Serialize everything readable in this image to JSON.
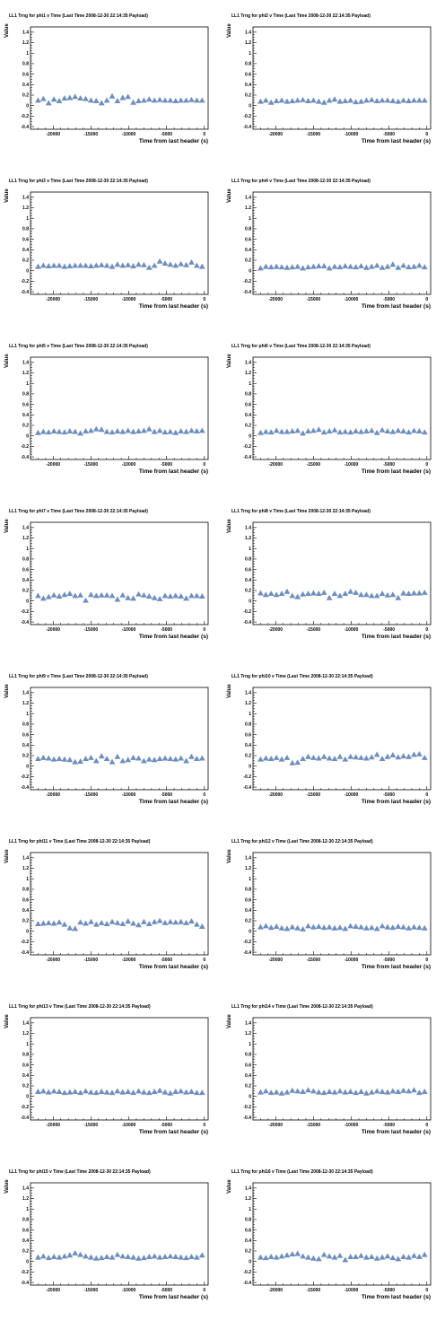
{
  "page": {
    "background": "#ffffff",
    "marker_color": "#6f8fc0"
  },
  "charts": [
    {
      "title": "LL1 Trng for phi1 v Time (Last Time 2008-12-30 22:14:35 Payload)",
      "xlabel": "Time from last header (s)",
      "ylabel": "Value"
    },
    {
      "title": "LL1 Trng for phi2 v Time (Last Time 2008-12-30 22:14:35 Payload)",
      "xlabel": "Time from last header (s)",
      "ylabel": "Value"
    },
    {
      "title": "LL1 Trng for phi3 v Time (Last Time 2008-12-30 22:14:35 Payload)",
      "xlabel": "Time from last header (s)",
      "ylabel": "Value"
    },
    {
      "title": "LL1 Trng for phi4 v Time (Last Time 2008-12-30 22:14:35 Payload)",
      "xlabel": "Time from last header (s)",
      "ylabel": "Value"
    },
    {
      "title": "LL1 Trng for phi5 v Time (Last Time 2008-12-30 22:14:35 Payload)",
      "xlabel": "Time from last header (s)",
      "ylabel": "Value"
    },
    {
      "title": "LL1 Trng for phi6 v Time (Last Time 2008-12-30 22:14:35 Payload)",
      "xlabel": "Time from last header (s)",
      "ylabel": "Value"
    },
    {
      "title": "LL1 Trng for phi7 v Time (Last Time 2008-12-30 22:14:35 Payload)",
      "xlabel": "Time from last header (s)",
      "ylabel": "Value"
    },
    {
      "title": "LL1 Trng for phi8 v Time (Last Time 2008-12-30 22:14:35 Payload)",
      "xlabel": "Time from last header (s)",
      "ylabel": "Value"
    },
    {
      "title": "LL1 Trng for phi9 v Time (Last Time 2008-12-30 22:14:35 Payload)",
      "xlabel": "Time from last header (s)",
      "ylabel": "Value"
    },
    {
      "title": "LL1 Trng for phi10 v Time (Last Time 2008-12-30 22:14:35 Payload)",
      "xlabel": "Time from last header (s)",
      "ylabel": "Value"
    },
    {
      "title": "LL1 Trng for phi11 v Time (Last Time 2008-12-30 22:14:35 Payload)",
      "xlabel": "Time from last header (s)",
      "ylabel": "Value"
    },
    {
      "title": "LL1 Trng for phi12 v Time (Last Time 2008-12-30 22:14:35 Payload)",
      "xlabel": "Time from last header (s)",
      "ylabel": "Value"
    },
    {
      "title": "LL1 Trng for phi13 v Time (Last Time 2008-12-30 22:14:35 Payload)",
      "xlabel": "Time from last header (s)",
      "ylabel": "Value"
    },
    {
      "title": "LL1 Trng for phi14 v Time (Last Time 2008-12-30 22:14:35 Payload)",
      "xlabel": "Time from last header (s)",
      "ylabel": "Value"
    },
    {
      "title": "LL1 Trng for phi15 v Time (Last Time 2008-12-30 22:14:35 Payload)",
      "xlabel": "Time from last header (s)",
      "ylabel": "Value"
    },
    {
      "title": "LL1 Trng for phi16 v Time (Last Time 2008-12-30 22:14:35 Payload)",
      "xlabel": "Time from last header (s)",
      "ylabel": "Value"
    }
  ],
  "chart_data": {
    "type": "scatter",
    "marker": "triangle",
    "xlim": [
      -23000,
      500
    ],
    "ylim": [
      -0.45,
      1.5
    ],
    "x_ticks": [
      -20000,
      -15000,
      -10000,
      -5000,
      0
    ],
    "x_tick_labels": [
      "-20000",
      "-15000",
      "-10000",
      "-5000",
      "0"
    ],
    "y_ticks": [
      -0.4,
      -0.2,
      0,
      0.2,
      0.4,
      0.6,
      0.8,
      1,
      1.2,
      1.4
    ],
    "y_tick_labels": [
      "-0.4",
      "-0.2",
      "0",
      "0.2",
      "0.4",
      "0.6",
      "0.8",
      "1",
      "1.2",
      "1.4"
    ],
    "x": [
      -22000,
      -21300,
      -20600,
      -19900,
      -19200,
      -18500,
      -17800,
      -17100,
      -16400,
      -15700,
      -15000,
      -14300,
      -13600,
      -12900,
      -12200,
      -11500,
      -10800,
      -10100,
      -9400,
      -8700,
      -8000,
      -7300,
      -6600,
      -5900,
      -5200,
      -4500,
      -3800,
      -3100,
      -2400,
      -1700,
      -1000,
      -300
    ],
    "series": [
      {
        "values": [
          0.1,
          0.13,
          0.05,
          0.12,
          0.09,
          0.14,
          0.15,
          0.17,
          0.14,
          0.13,
          0.1,
          0.09,
          0.05,
          0.1,
          0.18,
          0.09,
          0.15,
          0.17,
          0.06,
          0.09,
          0.1,
          0.12,
          0.1,
          0.11,
          0.1,
          0.1,
          0.09,
          0.1,
          0.1,
          0.11,
          0.1,
          0.1
        ]
      },
      {
        "values": [
          0.08,
          0.1,
          0.06,
          0.09,
          0.1,
          0.08,
          0.09,
          0.1,
          0.11,
          0.09,
          0.1,
          0.08,
          0.06,
          0.1,
          0.12,
          0.08,
          0.09,
          0.1,
          0.07,
          0.08,
          0.1,
          0.11,
          0.09,
          0.1,
          0.1,
          0.09,
          0.08,
          0.1,
          0.09,
          0.1,
          0.1,
          0.1
        ]
      },
      {
        "values": [
          0.08,
          0.1,
          0.09,
          0.1,
          0.1,
          0.08,
          0.09,
          0.1,
          0.1,
          0.1,
          0.09,
          0.1,
          0.11,
          0.1,
          0.08,
          0.12,
          0.1,
          0.11,
          0.09,
          0.12,
          0.11,
          0.06,
          0.1,
          0.18,
          0.14,
          0.12,
          0.1,
          0.13,
          0.11,
          0.16,
          0.1,
          0.08
        ]
      },
      {
        "values": [
          0.05,
          0.08,
          0.07,
          0.08,
          0.07,
          0.06,
          0.07,
          0.08,
          0.05,
          0.07,
          0.08,
          0.09,
          0.09,
          0.05,
          0.08,
          0.07,
          0.09,
          0.08,
          0.07,
          0.09,
          0.06,
          0.08,
          0.1,
          0.06,
          0.08,
          0.12,
          0.06,
          0.1,
          0.07,
          0.08,
          0.1,
          0.07
        ]
      },
      {
        "values": [
          0.06,
          0.08,
          0.07,
          0.09,
          0.08,
          0.07,
          0.09,
          0.08,
          0.05,
          0.09,
          0.1,
          0.13,
          0.12,
          0.08,
          0.07,
          0.09,
          0.08,
          0.1,
          0.08,
          0.09,
          0.1,
          0.13,
          0.08,
          0.1,
          0.07,
          0.08,
          0.06,
          0.09,
          0.08,
          0.1,
          0.09,
          0.1
        ]
      },
      {
        "values": [
          0.06,
          0.08,
          0.07,
          0.1,
          0.08,
          0.08,
          0.09,
          0.1,
          0.05,
          0.09,
          0.1,
          0.12,
          0.07,
          0.09,
          0.11,
          0.07,
          0.08,
          0.07,
          0.09,
          0.08,
          0.09,
          0.1,
          0.06,
          0.11,
          0.09,
          0.08,
          0.1,
          0.09,
          0.07,
          0.1,
          0.09,
          0.07
        ]
      },
      {
        "values": [
          0.1,
          0.05,
          0.08,
          0.11,
          0.09,
          0.12,
          0.14,
          0.1,
          0.11,
          0.01,
          0.12,
          0.1,
          0.11,
          0.11,
          0.1,
          0.03,
          0.11,
          0.06,
          0.05,
          0.13,
          0.11,
          0.09,
          0.06,
          0.04,
          0.1,
          0.09,
          0.1,
          0.09,
          0.05,
          0.1,
          0.1,
          0.09
        ]
      },
      {
        "values": [
          0.15,
          0.12,
          0.14,
          0.12,
          0.14,
          0.18,
          0.1,
          0.08,
          0.13,
          0.14,
          0.15,
          0.14,
          0.16,
          0.06,
          0.14,
          0.1,
          0.14,
          0.18,
          0.16,
          0.12,
          0.12,
          0.1,
          0.1,
          0.14,
          0.11,
          0.12,
          0.06,
          0.15,
          0.14,
          0.15,
          0.15,
          0.16
        ]
      },
      {
        "values": [
          0.14,
          0.16,
          0.15,
          0.13,
          0.14,
          0.13,
          0.12,
          0.08,
          0.09,
          0.14,
          0.16,
          0.1,
          0.19,
          0.14,
          0.08,
          0.18,
          0.1,
          0.12,
          0.16,
          0.15,
          0.1,
          0.13,
          0.12,
          0.14,
          0.15,
          0.14,
          0.13,
          0.15,
          0.1,
          0.18,
          0.14,
          0.15
        ]
      },
      {
        "values": [
          0.13,
          0.15,
          0.14,
          0.16,
          0.13,
          0.16,
          0.06,
          0.07,
          0.14,
          0.18,
          0.16,
          0.15,
          0.18,
          0.15,
          0.14,
          0.18,
          0.13,
          0.18,
          0.17,
          0.16,
          0.15,
          0.17,
          0.22,
          0.14,
          0.18,
          0.21,
          0.17,
          0.19,
          0.18,
          0.22,
          0.23,
          0.16
        ]
      },
      {
        "values": [
          0.14,
          0.15,
          0.16,
          0.15,
          0.17,
          0.13,
          0.06,
          0.05,
          0.17,
          0.15,
          0.18,
          0.13,
          0.16,
          0.14,
          0.18,
          0.16,
          0.14,
          0.19,
          0.15,
          0.12,
          0.18,
          0.14,
          0.18,
          0.2,
          0.16,
          0.18,
          0.17,
          0.18,
          0.16,
          0.19,
          0.13,
          0.09
        ]
      },
      {
        "values": [
          0.08,
          0.1,
          0.07,
          0.09,
          0.06,
          0.05,
          0.08,
          0.06,
          0.04,
          0.1,
          0.08,
          0.09,
          0.07,
          0.08,
          0.06,
          0.07,
          0.05,
          0.1,
          0.09,
          0.08,
          0.06,
          0.07,
          0.05,
          0.1,
          0.08,
          0.07,
          0.09,
          0.08,
          0.06,
          0.08,
          0.07,
          0.06
        ]
      },
      {
        "values": [
          0.09,
          0.1,
          0.08,
          0.1,
          0.09,
          0.07,
          0.08,
          0.09,
          0.07,
          0.1,
          0.08,
          0.07,
          0.09,
          0.08,
          0.07,
          0.1,
          0.08,
          0.09,
          0.07,
          0.1,
          0.08,
          0.07,
          0.09,
          0.11,
          0.08,
          0.06,
          0.09,
          0.1,
          0.08,
          0.09,
          0.07,
          0.07
        ]
      },
      {
        "values": [
          0.08,
          0.1,
          0.07,
          0.08,
          0.06,
          0.08,
          0.11,
          0.1,
          0.09,
          0.12,
          0.1,
          0.08,
          0.07,
          0.09,
          0.08,
          0.1,
          0.08,
          0.09,
          0.07,
          0.09,
          0.06,
          0.08,
          0.1,
          0.09,
          0.08,
          0.1,
          0.09,
          0.11,
          0.1,
          0.12,
          0.07,
          0.09
        ]
      },
      {
        "values": [
          0.08,
          0.1,
          0.07,
          0.09,
          0.08,
          0.1,
          0.12,
          0.16,
          0.13,
          0.1,
          0.08,
          0.06,
          0.07,
          0.09,
          0.08,
          0.13,
          0.1,
          0.09,
          0.08,
          0.06,
          0.07,
          0.09,
          0.1,
          0.08,
          0.09,
          0.1,
          0.09,
          0.08,
          0.07,
          0.09,
          0.08,
          0.12
        ]
      },
      {
        "values": [
          0.08,
          0.07,
          0.09,
          0.08,
          0.1,
          0.12,
          0.14,
          0.15,
          0.1,
          0.08,
          0.06,
          0.05,
          0.13,
          0.1,
          0.08,
          0.11,
          0.03,
          0.09,
          0.09,
          0.11,
          0.08,
          0.09,
          0.06,
          0.08,
          0.1,
          0.07,
          0.05,
          0.09,
          0.08,
          0.11,
          0.09,
          0.13
        ]
      }
    ]
  }
}
